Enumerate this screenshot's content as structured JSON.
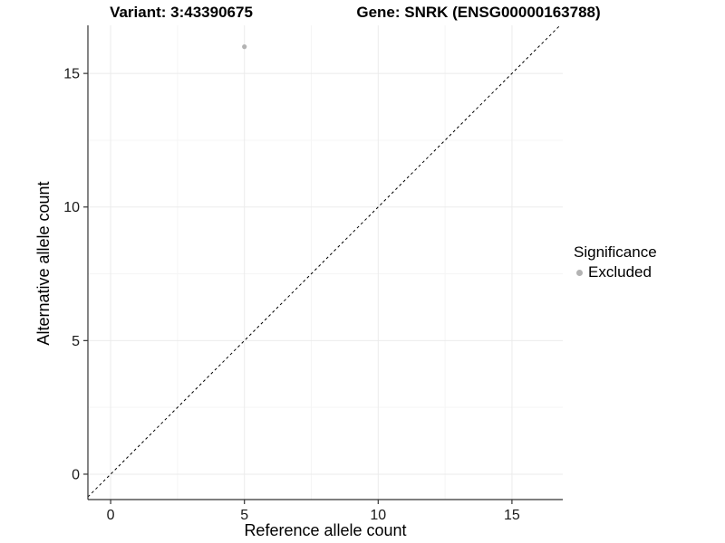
{
  "figure": {
    "title_left": "Variant: 3:43390675",
    "title_right": "Gene: SNRK (ENSG00000163788)"
  },
  "chart_data": {
    "type": "scatter",
    "title": "Variant: 3:43390675   Gene: SNRK (ENSG00000163788)",
    "xlabel": "Reference allele count",
    "ylabel": "Alternative allele count",
    "xlim": [
      -0.85,
      16.9
    ],
    "ylim": [
      -0.95,
      16.8
    ],
    "xticks": [
      0,
      5,
      10,
      15
    ],
    "yticks": [
      0,
      5,
      10,
      15
    ],
    "minor_ticks": [
      2.5,
      7.5,
      12.5
    ],
    "grid": "major+minor",
    "points": [
      {
        "x": 5,
        "y": 16,
        "series": "Excluded"
      }
    ],
    "reference_line": {
      "type": "identity",
      "slope": 1,
      "intercept": 0,
      "style": "dashed"
    },
    "legend": {
      "title": "Significance",
      "position": "right",
      "items": [
        {
          "label": "Excluded",
          "color": "#b3b3b3"
        }
      ]
    },
    "colors": {
      "point": "#b3b3b3",
      "grid_major": "#ebebeb",
      "grid_minor": "#f5f5f5",
      "axis_line": "#333333",
      "tick_label": "#1a1a1a",
      "dashed_line": "#000000",
      "background": "#ffffff"
    }
  }
}
